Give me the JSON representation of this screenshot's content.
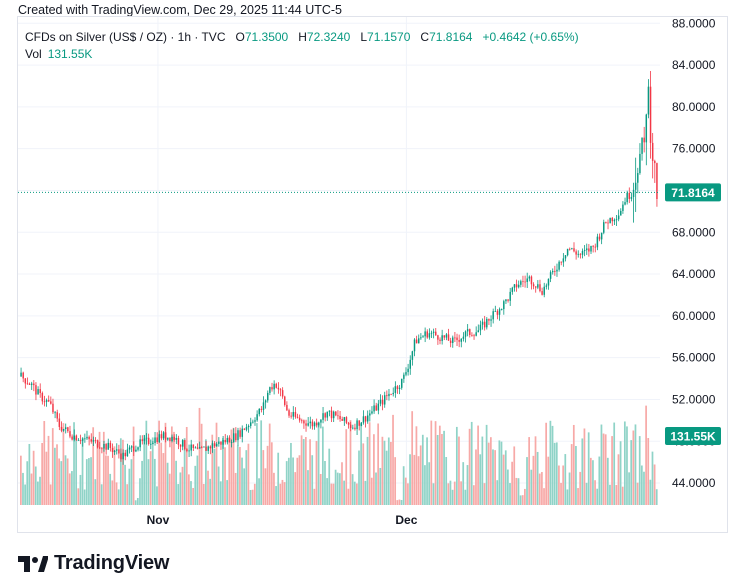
{
  "header": {
    "created_text": "Created with TradingView.com, Dec 29, 2025 11:44 UTC-5"
  },
  "legend": {
    "symbol": "CFDs on Silver (US$ / OZ) · 1h · TVC",
    "open_label": "O",
    "open": "71.3500",
    "high_label": "H",
    "high": "72.3240",
    "low_label": "L",
    "low": "71.1570",
    "close_label": "C",
    "close": "71.8164",
    "change": "+0.4642 (+0.65%)",
    "vol_label": "Vol",
    "vol_value": "131.55K"
  },
  "price_badge": "71.8164",
  "volume_badge": "131.55K",
  "brand": {
    "name": "TradingView"
  },
  "colors": {
    "up": "#089981",
    "down": "#f23645",
    "vol_up": "#8fd3c7",
    "vol_down": "#f7a9a7",
    "grid": "#f0f3fa"
  },
  "chart_data": {
    "type": "candlestick",
    "y_ticks": [
      "88.0000",
      "84.0000",
      "80.0000",
      "76.0000",
      "72.0000",
      "68.0000",
      "64.0000",
      "60.0000",
      "56.0000",
      "52.0000",
      "48.0000",
      "44.0000"
    ],
    "ylim": [
      41.9,
      88.6
    ],
    "x_ticks": [
      "Nov",
      "Dec"
    ],
    "last_price": 71.8164,
    "price_path": [
      {
        "t": 0,
        "p": 54.2
      },
      {
        "t": 0.015,
        "p": 53.5
      },
      {
        "t": 0.03,
        "p": 52.3
      },
      {
        "t": 0.045,
        "p": 51.6
      },
      {
        "t": 0.06,
        "p": 49.5
      },
      {
        "t": 0.08,
        "p": 48.6
      },
      {
        "t": 0.1,
        "p": 48.2
      },
      {
        "t": 0.12,
        "p": 47.8
      },
      {
        "t": 0.14,
        "p": 47.4
      },
      {
        "t": 0.16,
        "p": 46.6
      },
      {
        "t": 0.18,
        "p": 47.6
      },
      {
        "t": 0.2,
        "p": 48.0
      },
      {
        "t": 0.22,
        "p": 48.5
      },
      {
        "t": 0.24,
        "p": 48.4
      },
      {
        "t": 0.26,
        "p": 47.4
      },
      {
        "t": 0.28,
        "p": 47.0
      },
      {
        "t": 0.3,
        "p": 47.6
      },
      {
        "t": 0.32,
        "p": 48.0
      },
      {
        "t": 0.34,
        "p": 48.6
      },
      {
        "t": 0.36,
        "p": 49.8
      },
      {
        "t": 0.38,
        "p": 51.2
      },
      {
        "t": 0.39,
        "p": 53.0
      },
      {
        "t": 0.4,
        "p": 53.6
      },
      {
        "t": 0.41,
        "p": 52.4
      },
      {
        "t": 0.42,
        "p": 50.6
      },
      {
        "t": 0.44,
        "p": 50.0
      },
      {
        "t": 0.46,
        "p": 49.6
      },
      {
        "t": 0.48,
        "p": 50.8
      },
      {
        "t": 0.5,
        "p": 50.2
      },
      {
        "t": 0.52,
        "p": 49.4
      },
      {
        "t": 0.54,
        "p": 50.2
      },
      {
        "t": 0.56,
        "p": 51.3
      },
      {
        "t": 0.58,
        "p": 52.6
      },
      {
        "t": 0.6,
        "p": 53.8
      },
      {
        "t": 0.61,
        "p": 55.5
      },
      {
        "t": 0.62,
        "p": 57.6
      },
      {
        "t": 0.64,
        "p": 58.4
      },
      {
        "t": 0.66,
        "p": 58.0
      },
      {
        "t": 0.68,
        "p": 57.5
      },
      {
        "t": 0.7,
        "p": 58.3
      },
      {
        "t": 0.72,
        "p": 58.6
      },
      {
        "t": 0.74,
        "p": 60.0
      },
      {
        "t": 0.76,
        "p": 61.2
      },
      {
        "t": 0.78,
        "p": 63.0
      },
      {
        "t": 0.8,
        "p": 63.6
      },
      {
        "t": 0.82,
        "p": 62.4
      },
      {
        "t": 0.84,
        "p": 64.5
      },
      {
        "t": 0.86,
        "p": 66.5
      },
      {
        "t": 0.88,
        "p": 65.8
      },
      {
        "t": 0.9,
        "p": 66.6
      },
      {
        "t": 0.92,
        "p": 69.0
      },
      {
        "t": 0.94,
        "p": 69.8
      },
      {
        "t": 0.95,
        "p": 71.2
      },
      {
        "t": 0.96,
        "p": 71.8
      },
      {
        "t": 0.97,
        "p": 74.8
      },
      {
        "t": 0.98,
        "p": 76.0
      },
      {
        "t": 0.985,
        "p": 82.5
      },
      {
        "t": 0.99,
        "p": 78.0
      },
      {
        "t": 0.995,
        "p": 74.5
      },
      {
        "t": 1.0,
        "p": 71.8164
      }
    ]
  }
}
